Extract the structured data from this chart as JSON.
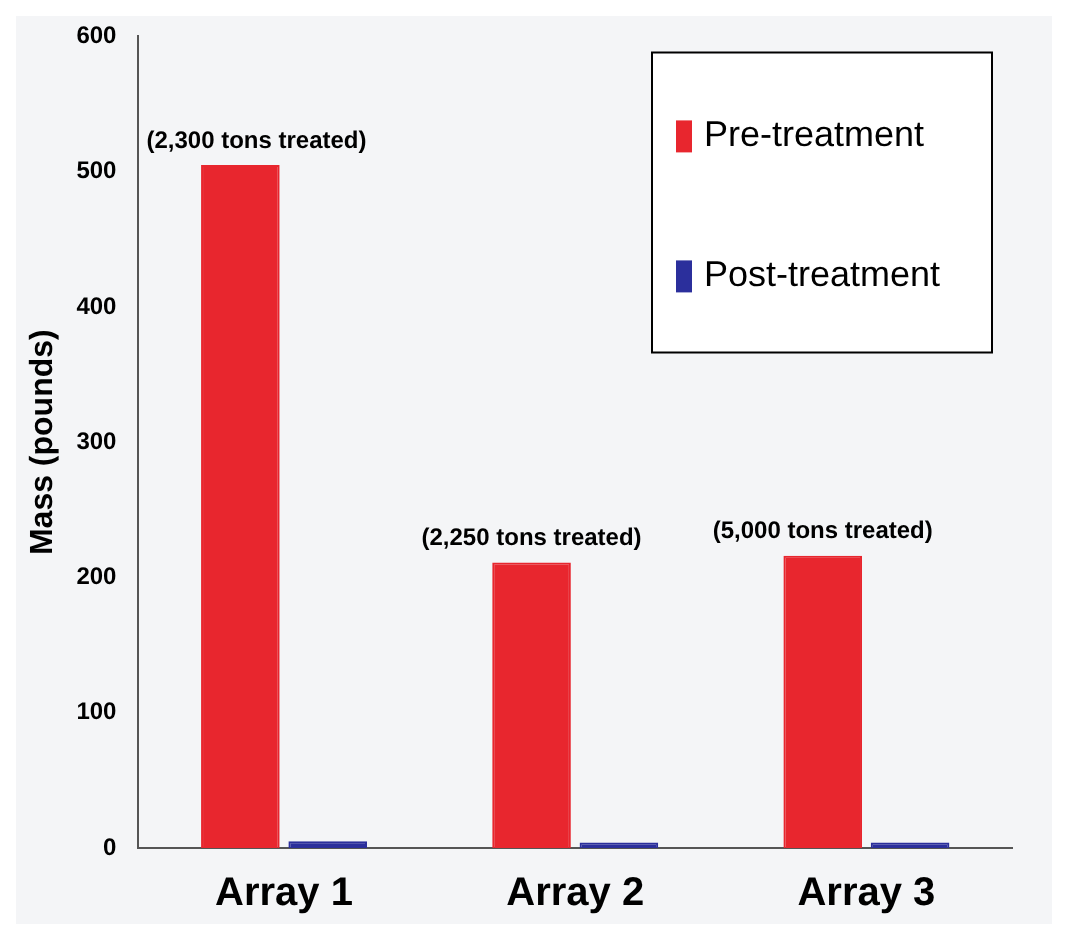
{
  "chart_data": {
    "type": "bar",
    "ylabel": "Mass (pounds)",
    "categories": [
      "Array 1",
      "Array 2",
      "Array 3"
    ],
    "series": [
      {
        "name": "Pre-treatment",
        "color": "#e8262e",
        "values": [
          505,
          211,
          216
        ]
      },
      {
        "name": "Post-treatment",
        "color": "#2b2f9c",
        "values": [
          5,
          4,
          4
        ]
      }
    ],
    "ylim": [
      0,
      600
    ],
    "yticks": [
      0,
      100,
      200,
      300,
      400,
      500,
      600
    ],
    "grid": false,
    "legend": "top right",
    "annotations": [
      {
        "text": "(2,300 tons treated)",
        "x": "Array 1",
        "y": 505
      },
      {
        "text": "(2,250 tons treated)",
        "x": "Array 2",
        "y": 211
      },
      {
        "text": "(5,000 tons treated)",
        "x": "Array 3",
        "y": 216
      }
    ]
  }
}
